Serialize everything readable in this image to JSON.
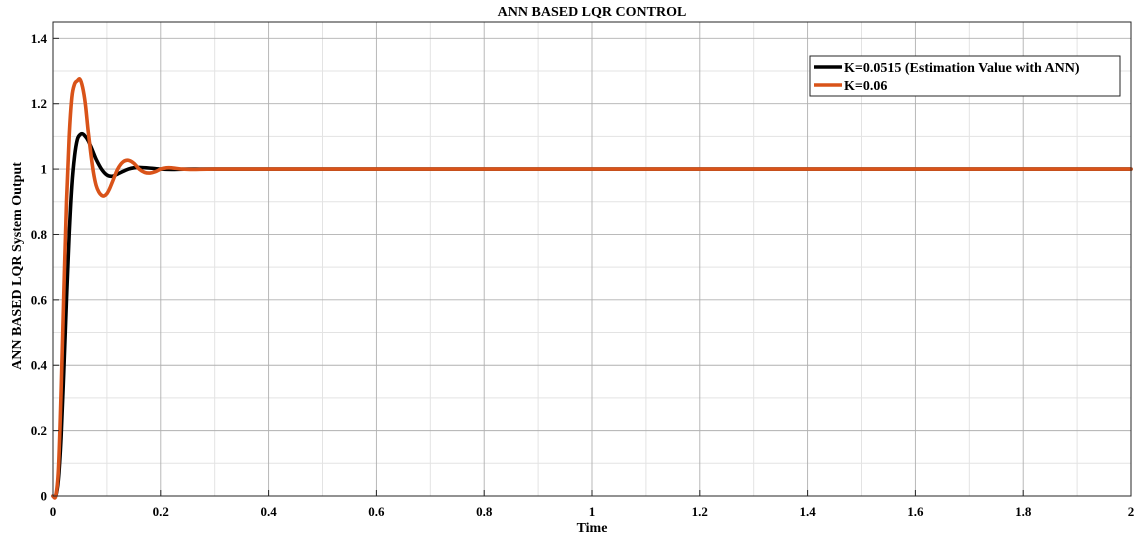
{
  "chart_data": {
    "type": "line",
    "title": "ANN BASED LQR CONTROL",
    "xlabel": "Time",
    "ylabel": "ANN BASED LQR System Output",
    "xlim": [
      0,
      2
    ],
    "ylim": [
      0,
      1.45
    ],
    "xticks": [
      0,
      0.2,
      0.4,
      0.6,
      0.8,
      1,
      1.2,
      1.4,
      1.6,
      1.8,
      2
    ],
    "xtick_labels": [
      "0",
      "0.2",
      "0.4",
      "0.6",
      "0.8",
      "1",
      "1.2",
      "1.4",
      "1.6",
      "1.8",
      "2"
    ],
    "yticks": [
      0,
      0.2,
      0.4,
      0.6,
      0.8,
      1,
      1.2,
      1.4
    ],
    "ytick_labels": [
      "0",
      "0.2",
      "0.4",
      "0.6",
      "0.8",
      "1",
      "1.2",
      "1.4"
    ],
    "grid": true,
    "minor_grid": true,
    "legend_position": "top-right",
    "series": [
      {
        "name": "K=0.0515 (Estimation Value with ANN)",
        "color": "#000000",
        "x": [
          0,
          0.005,
          0.01,
          0.015,
          0.02,
          0.025,
          0.03,
          0.035,
          0.04,
          0.045,
          0.05,
          0.055,
          0.06,
          0.065,
          0.07,
          0.075,
          0.08,
          0.09,
          0.1,
          0.11,
          0.12,
          0.13,
          0.14,
          0.15,
          0.16,
          0.18,
          0.2,
          0.22,
          0.25,
          0.3,
          0.4,
          0.6,
          1.0,
          1.5,
          2.0
        ],
        "y": [
          0,
          0.0,
          0.05,
          0.18,
          0.38,
          0.6,
          0.8,
          0.95,
          1.04,
          1.09,
          1.105,
          1.108,
          1.1,
          1.088,
          1.07,
          1.05,
          1.03,
          1.0,
          0.982,
          0.978,
          0.985,
          0.993,
          1.0,
          1.004,
          1.005,
          1.003,
          1.0,
          0.999,
          1.0,
          1.0,
          1.0,
          1.0,
          1.0,
          1.0,
          1.0
        ]
      },
      {
        "name": "K=0.06",
        "color": "#D95319",
        "x": [
          0,
          0.005,
          0.01,
          0.015,
          0.02,
          0.025,
          0.03,
          0.035,
          0.04,
          0.045,
          0.05,
          0.055,
          0.06,
          0.065,
          0.07,
          0.075,
          0.08,
          0.085,
          0.09,
          0.095,
          0.1,
          0.105,
          0.11,
          0.12,
          0.13,
          0.14,
          0.15,
          0.16,
          0.17,
          0.18,
          0.19,
          0.2,
          0.21,
          0.22,
          0.24,
          0.26,
          0.3,
          0.4,
          0.6,
          1.0,
          1.5,
          2.0
        ],
        "y": [
          0,
          0.0,
          0.08,
          0.32,
          0.62,
          0.9,
          1.1,
          1.22,
          1.26,
          1.27,
          1.275,
          1.25,
          1.2,
          1.12,
          1.05,
          0.99,
          0.95,
          0.93,
          0.92,
          0.918,
          0.925,
          0.94,
          0.96,
          1.0,
          1.022,
          1.027,
          1.018,
          1.0,
          0.99,
          0.988,
          0.992,
          1.0,
          1.004,
          1.004,
          1.0,
          0.999,
          1.0,
          1.0,
          1.0,
          1.0,
          1.0,
          1.0
        ]
      }
    ]
  }
}
